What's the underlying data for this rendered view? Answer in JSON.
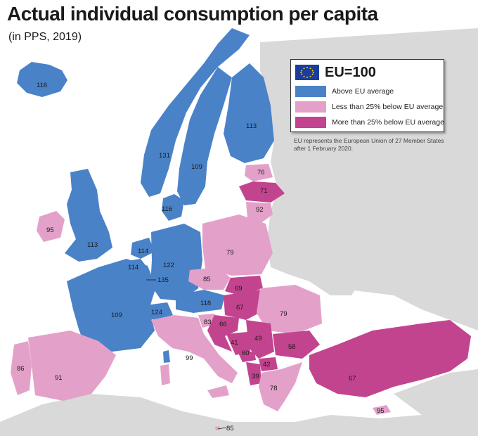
{
  "title": "Actual individual consumption per capita",
  "subtitle": "(in PPS, 2019)",
  "legend": {
    "eu_label": "EU=100",
    "items": [
      {
        "label": "Above EU average",
        "color": "#4a82c8"
      },
      {
        "label": "Less than 25% below EU average",
        "color": "#e3a1c9"
      },
      {
        "label": "More than 25% below EU average",
        "color": "#c2448f"
      }
    ]
  },
  "note": "EU represents the European Union of 27 Member States after 1 February 2020.",
  "colors": {
    "background_land": "#d9d9d9",
    "sea": "#ffffff",
    "above": "#4a82c8",
    "less25": "#e3a1c9",
    "more25": "#c2448f"
  },
  "values": {
    "iceland": "116",
    "norway": "131",
    "sweden": "109",
    "finland": "113",
    "estonia": "76",
    "latvia": "71",
    "lithuania": "92",
    "denmark": "116",
    "ireland": "95",
    "uk": "113",
    "netherlands": "114",
    "belgium": "114",
    "luxembourg": "135",
    "germany": "122",
    "poland": "79",
    "czechia": "85",
    "slovakia": "69",
    "hungary": "67",
    "romania": "79",
    "austria": "118",
    "switzerland": "124",
    "france": "109",
    "slovenia": "83",
    "croatia": "66",
    "bosnia": "41",
    "serbia": "49",
    "montenegro": "60",
    "bulgaria": "58",
    "north_macedonia": "42",
    "albania": "39",
    "greece": "78",
    "turkey": "67",
    "cyprus": "95",
    "italy": "99",
    "portugal": "86",
    "spain": "91",
    "malta": "85"
  }
}
